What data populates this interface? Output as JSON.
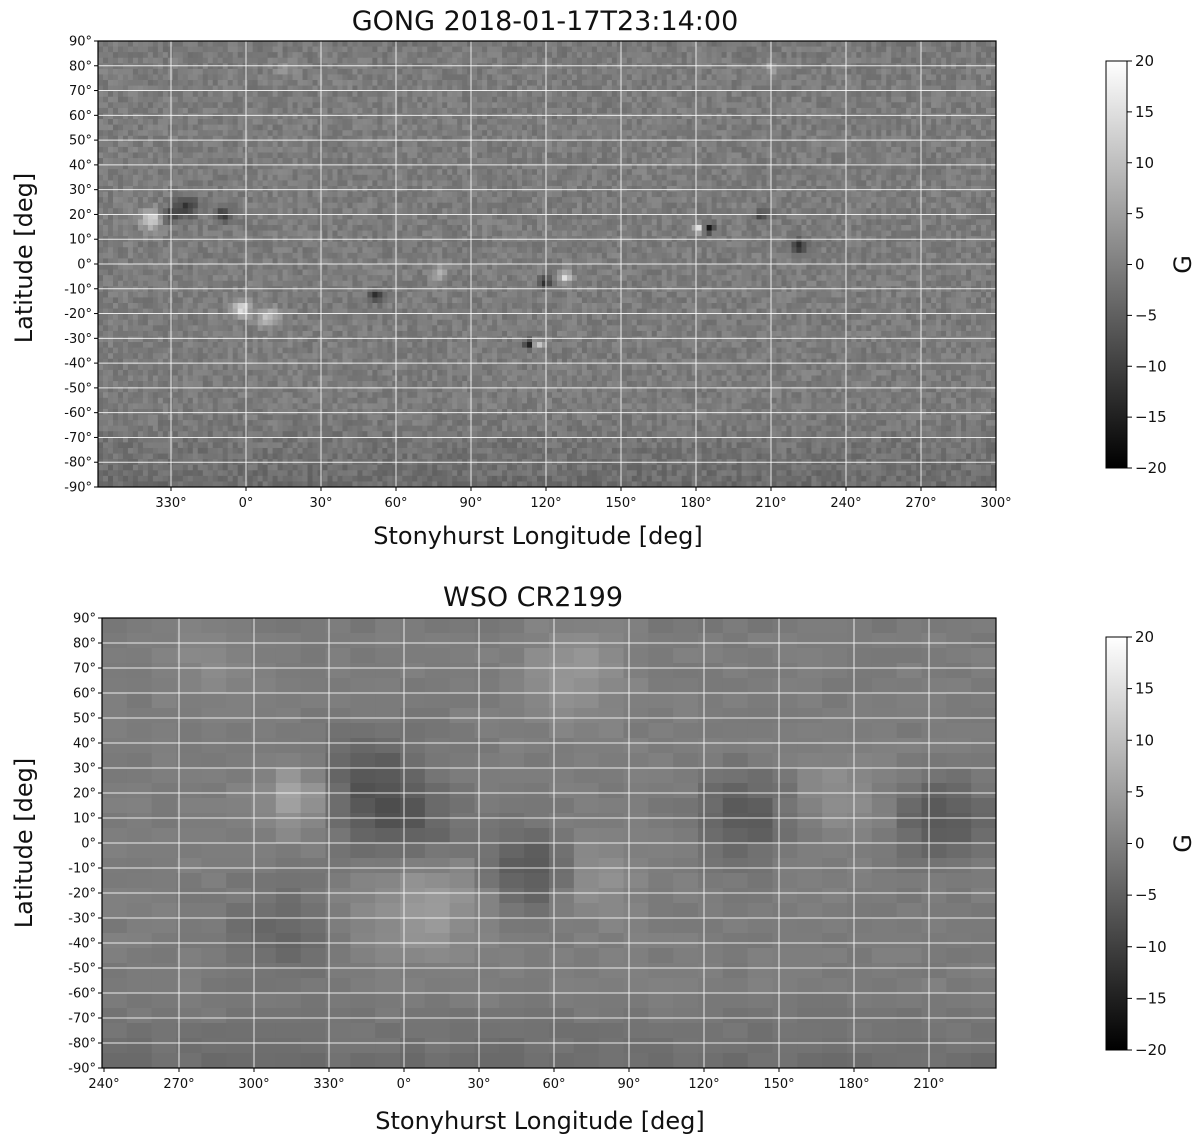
{
  "chart_data": [
    {
      "type": "heatmap",
      "title": "GONG  2018-01-17T23:14:00",
      "xlabel": "Stonyhurst Longitude [deg]",
      "ylabel": "Latitude [deg]",
      "x_ticks": [
        "330°",
        "0°",
        "30°",
        "60°",
        "90°",
        "120°",
        "150°",
        "180°",
        "210°",
        "240°",
        "270°",
        "300°"
      ],
      "y_ticks": [
        "90°",
        "80°",
        "70°",
        "60°",
        "50°",
        "40°",
        "30°",
        "20°",
        "10°",
        "0°",
        "-10°",
        "-20°",
        "-30°",
        "-40°",
        "-50°",
        "-60°",
        "-70°",
        "-80°",
        "-90°"
      ],
      "colorbar": {
        "label": "G",
        "ticks": [
          "20",
          "15",
          "10",
          "5",
          "0",
          "−5",
          "−10",
          "−15",
          "−20"
        ],
        "range": [
          -20,
          20
        ],
        "colormap": "gray"
      },
      "grid": true,
      "resolution": "high"
    },
    {
      "type": "heatmap",
      "title": "WSO  CR2199",
      "xlabel": "Stonyhurst Longitude [deg]",
      "ylabel": "Latitude [deg]",
      "x_ticks": [
        "240°",
        "270°",
        "300°",
        "330°",
        "0°",
        "30°",
        "60°",
        "90°",
        "120°",
        "150°",
        "180°",
        "210°"
      ],
      "y_ticks": [
        "90°",
        "80°",
        "70°",
        "60°",
        "50°",
        "40°",
        "30°",
        "20°",
        "10°",
        "0°",
        "-10°",
        "-20°",
        "-30°",
        "-40°",
        "-50°",
        "-60°",
        "-70°",
        "-80°",
        "-90°"
      ],
      "colorbar": {
        "label": "G",
        "ticks": [
          "20",
          "15",
          "10",
          "5",
          "0",
          "−5",
          "−10",
          "−15",
          "−20"
        ],
        "range": [
          -20,
          20
        ],
        "colormap": "gray"
      },
      "grid": true,
      "resolution": "low"
    }
  ]
}
